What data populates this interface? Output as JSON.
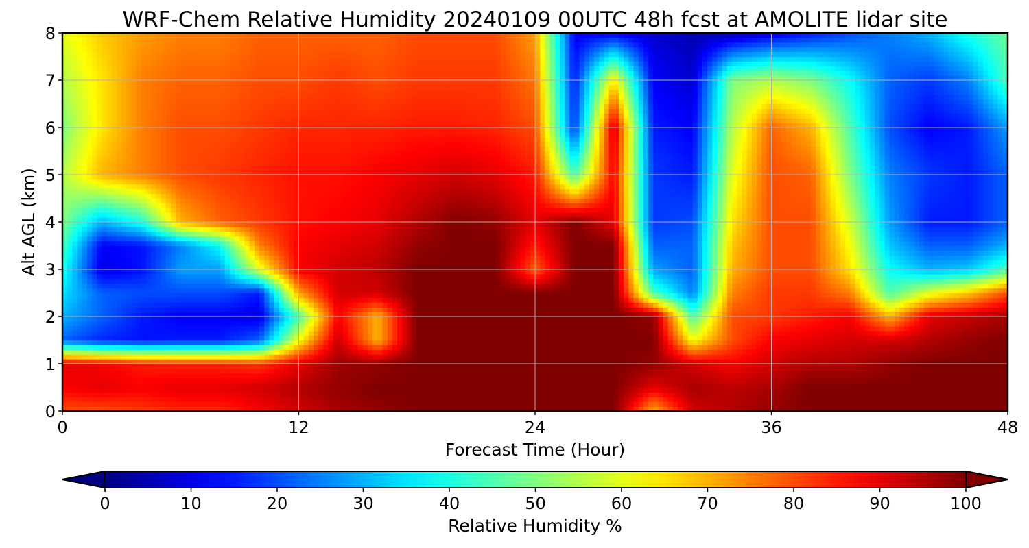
{
  "chart_data": {
    "type": "heatmap",
    "title": "WRF-Chem Relative Humidity 20240109 00UTC 48h fcst at AMOLITE lidar site",
    "xlabel": "Forecast Time (Hour)",
    "ylabel": "Alt AGL (km)",
    "xlim": [
      0,
      48
    ],
    "ylim": [
      0,
      8
    ],
    "xticks": [
      0,
      12,
      24,
      36,
      48
    ],
    "yticks": [
      0,
      1,
      2,
      3,
      4,
      5,
      6,
      7,
      8
    ],
    "grid": true,
    "colormap": "jet",
    "colorbar": {
      "label": "Relative Humidity %",
      "min": 0,
      "max": 100,
      "ticks": [
        0,
        10,
        20,
        30,
        40,
        50,
        60,
        70,
        80,
        90,
        100
      ],
      "extend": "both",
      "orientation": "horizontal"
    },
    "x": [
      0,
      2,
      4,
      6,
      8,
      10,
      12,
      14,
      16,
      18,
      20,
      22,
      24,
      26,
      28,
      30,
      32,
      34,
      36,
      38,
      40,
      42,
      44,
      46,
      48
    ],
    "y": [
      0,
      0.5,
      1,
      1.5,
      2,
      2.5,
      3,
      3.5,
      4,
      5,
      6,
      7,
      8
    ],
    "z": [
      [
        80,
        80,
        82,
        84,
        84,
        88,
        92,
        96,
        98,
        100,
        100,
        100,
        100,
        100,
        100,
        70,
        92,
        95,
        98,
        100,
        100,
        100,
        100,
        100,
        100
      ],
      [
        88,
        90,
        88,
        90,
        90,
        92,
        95,
        98,
        100,
        100,
        100,
        100,
        100,
        100,
        100,
        90,
        96,
        94,
        96,
        100,
        100,
        100,
        100,
        100,
        100
      ],
      [
        90,
        88,
        85,
        84,
        84,
        82,
        90,
        97,
        98,
        100,
        100,
        100,
        100,
        100,
        100,
        98,
        92,
        88,
        92,
        95,
        95,
        98,
        100,
        100,
        100
      ],
      [
        22,
        16,
        14,
        15,
        15,
        22,
        62,
        93,
        70,
        100,
        100,
        100,
        100,
        100,
        100,
        100,
        62,
        80,
        88,
        90,
        92,
        92,
        95,
        98,
        100
      ],
      [
        30,
        22,
        15,
        12,
        12,
        10,
        45,
        88,
        70,
        100,
        100,
        100,
        100,
        100,
        100,
        98,
        45,
        80,
        82,
        85,
        88,
        70,
        90,
        93,
        96
      ],
      [
        35,
        22,
        20,
        20,
        20,
        15,
        72,
        92,
        92,
        100,
        100,
        100,
        100,
        100,
        100,
        45,
        25,
        75,
        82,
        82,
        75,
        45,
        60,
        68,
        80
      ],
      [
        40,
        10,
        14,
        28,
        28,
        60,
        88,
        92,
        94,
        100,
        100,
        100,
        78,
        100,
        100,
        28,
        22,
        70,
        80,
        80,
        65,
        38,
        30,
        32,
        45
      ],
      [
        45,
        12,
        14,
        25,
        38,
        75,
        88,
        90,
        92,
        98,
        100,
        100,
        85,
        100,
        100,
        22,
        22,
        68,
        80,
        80,
        62,
        32,
        22,
        22,
        30
      ],
      [
        50,
        30,
        40,
        70,
        78,
        82,
        86,
        88,
        90,
        95,
        100,
        98,
        90,
        100,
        90,
        18,
        20,
        65,
        80,
        80,
        58,
        28,
        15,
        15,
        22
      ],
      [
        55,
        70,
        75,
        80,
        82,
        84,
        86,
        86,
        88,
        90,
        92,
        90,
        85,
        45,
        88,
        18,
        15,
        60,
        80,
        78,
        50,
        25,
        18,
        15,
        22
      ],
      [
        50,
        65,
        75,
        80,
        80,
        82,
        84,
        84,
        84,
        85,
        85,
        84,
        80,
        18,
        92,
        15,
        12,
        55,
        78,
        70,
        45,
        20,
        12,
        15,
        28
      ],
      [
        55,
        65,
        75,
        78,
        78,
        80,
        80,
        82,
        80,
        82,
        82,
        82,
        76,
        15,
        65,
        12,
        8,
        50,
        55,
        50,
        38,
        22,
        18,
        25,
        45
      ],
      [
        60,
        68,
        72,
        75,
        75,
        78,
        78,
        78,
        78,
        80,
        80,
        80,
        72,
        12,
        12,
        8,
        5,
        5,
        10,
        15,
        20,
        25,
        30,
        40,
        48
      ]
    ]
  }
}
